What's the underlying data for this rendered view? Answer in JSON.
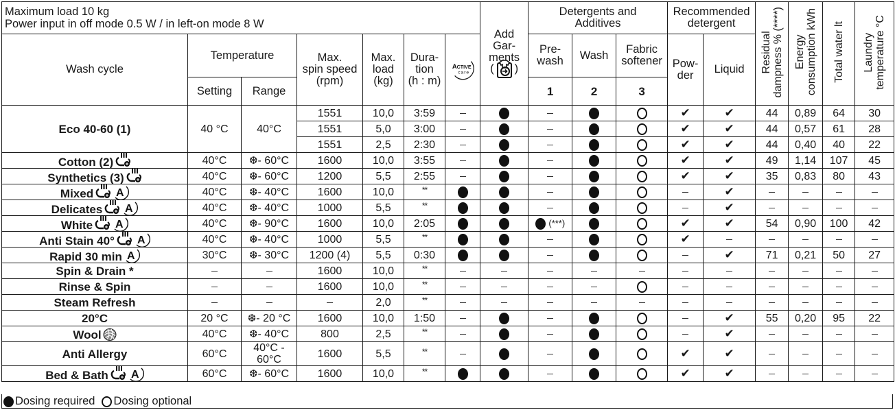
{
  "header": {
    "line1": "Maximum load 10 kg",
    "line2": "Power input in off mode 0.5 W / in left-on mode 8 W"
  },
  "columns": {
    "wash_cycle": "Wash cycle",
    "temperature": "Temperature",
    "setting": "Setting",
    "range": "Range",
    "spin_1": "Max.",
    "spin_2": "spin speed",
    "spin_3": "(rpm)",
    "load_1": "Max.",
    "load_2": "load",
    "load_3": "(kg)",
    "dur_1": "Dura-",
    "dur_2": "tion",
    "dur_3": "(h : m)",
    "active_care_icon": "active-care-icon",
    "add_1": "Add",
    "add_2": "Gar-",
    "add_3": "ments",
    "add_icon": "add-garment-icon",
    "detergents_1": "Detergents and",
    "detergents_2": "Additives",
    "prewash_1": "Pre-",
    "prewash_2": "wash",
    "prewash_num": "1",
    "wash": "Wash",
    "wash_num": "2",
    "softener_1": "Fabric",
    "softener_2": "softener",
    "softener_num": "3",
    "recommended_1": "Recommended",
    "recommended_2": "detergent",
    "powder_1": "Pow-",
    "powder_2": "der",
    "liquid": "Liquid",
    "residual_1": "Residual",
    "residual_2": "dampness % (****)",
    "energy_1": "Energy",
    "energy_2": "consumption kWh",
    "water": "Total water lt",
    "laundry_1": "Laundry",
    "laundry_2": "temperature °C"
  },
  "symbols": {
    "dash": "–",
    "check": "✔",
    "stars2": "**",
    "prewash_note": "(***)",
    "snow": "❆"
  },
  "rows": [
    {
      "cycle": "Eco 40-60 (1)",
      "icons": [],
      "setting": "40 °C",
      "range": "40°C",
      "sub": [
        {
          "spin": "1551",
          "load": "10,0",
          "dur": "3:59",
          "active": "dash",
          "add": "dot",
          "pre": "dash",
          "wash": "dot",
          "soft": "ring",
          "powder": "check",
          "liquid": "check",
          "res": "44",
          "energy": "0,89",
          "water": "64",
          "ltemp": "30"
        },
        {
          "spin": "1551",
          "load": "5,0",
          "dur": "3:00",
          "active": "dash",
          "add": "dot",
          "pre": "dash",
          "wash": "dot",
          "soft": "ring",
          "powder": "check",
          "liquid": "check",
          "res": "44",
          "energy": "0,57",
          "water": "61",
          "ltemp": "28"
        },
        {
          "spin": "1551",
          "load": "2,5",
          "dur": "2:30",
          "active": "dash",
          "add": "dot",
          "pre": "dash",
          "wash": "dot",
          "soft": "ring",
          "powder": "check",
          "liquid": "check",
          "res": "44",
          "energy": "0,40",
          "water": "40",
          "ltemp": "22"
        }
      ]
    },
    {
      "cycle": "Cotton (2)",
      "icons": [
        "steam"
      ],
      "setting": "40°C",
      "range": "- 60°C",
      "snow": true,
      "spin": "1600",
      "load": "10,0",
      "dur": "3:55",
      "active": "dash",
      "add": "dot",
      "pre": "dash",
      "wash": "dot",
      "soft": "ring",
      "powder": "check",
      "liquid": "check",
      "res": "49",
      "energy": "1,14",
      "water": "107",
      "ltemp": "45"
    },
    {
      "cycle": "Synthetics (3)",
      "icons": [
        "steam"
      ],
      "setting": "40°C",
      "range": "- 60°C",
      "snow": true,
      "spin": "1200",
      "load": "5,5",
      "dur": "2:55",
      "active": "dash",
      "add": "dot",
      "pre": "dash",
      "wash": "dot",
      "soft": "ring",
      "powder": "check",
      "liquid": "check",
      "res": "35",
      "energy": "0,83",
      "water": "80",
      "ltemp": "43"
    },
    {
      "cycle": "Mixed",
      "icons": [
        "steam",
        "auto"
      ],
      "setting": "40°C",
      "range": "- 40°C",
      "snow": true,
      "spin": "1600",
      "load": "10,0",
      "dur": "**",
      "active": "dot",
      "add": "dot",
      "pre": "dash",
      "wash": "dot",
      "soft": "ring",
      "powder": "dash",
      "liquid": "check",
      "res": "–",
      "energy": "–",
      "water": "–",
      "ltemp": "–"
    },
    {
      "cycle": "Delicates",
      "icons": [
        "steam",
        "auto"
      ],
      "setting": "40°C",
      "range": "- 40°C",
      "snow": true,
      "spin": "1000",
      "load": "5,5",
      "dur": "**",
      "active": "dot",
      "add": "dot",
      "pre": "dash",
      "wash": "dot",
      "soft": "ring",
      "powder": "dash",
      "liquid": "check",
      "res": "–",
      "energy": "–",
      "water": "–",
      "ltemp": "–"
    },
    {
      "cycle": "White",
      "icons": [
        "steam",
        "auto"
      ],
      "setting": "40°C",
      "range": "- 90°C",
      "snow": true,
      "spin": "1600",
      "load": "10,0",
      "dur": "2:05",
      "active": "dot",
      "add": "dot",
      "pre": "dot-note",
      "wash": "dot",
      "soft": "ring",
      "powder": "check",
      "liquid": "check",
      "res": "54",
      "energy": "0,90",
      "water": "100",
      "ltemp": "42"
    },
    {
      "cycle": "Anti Stain 40°",
      "icons": [
        "steam",
        "auto"
      ],
      "setting": "40°C",
      "range": "- 40°C",
      "snow": true,
      "spin": "1000",
      "load": "5,5",
      "dur": "**",
      "active": "dot",
      "add": "dot",
      "pre": "dash",
      "wash": "dot",
      "soft": "ring",
      "powder": "check",
      "liquid": "dash",
      "res": "–",
      "energy": "–",
      "water": "–",
      "ltemp": "–"
    },
    {
      "cycle": "Rapid 30 min",
      "icons": [
        "auto"
      ],
      "setting": "30°C",
      "range": "- 30°C",
      "snow": true,
      "spin": "1200 (4)",
      "load": "5,5",
      "dur": "0:30",
      "active": "dot",
      "add": "dot",
      "pre": "dash",
      "wash": "dot",
      "soft": "ring",
      "powder": "dash",
      "liquid": "check",
      "res": "71",
      "energy": "0,21",
      "water": "50",
      "ltemp": "27"
    },
    {
      "cycle": "Spin & Drain *",
      "icons": [],
      "setting": "–",
      "range": "–",
      "snow": false,
      "spin": "1600",
      "load": "10,0",
      "dur": "**",
      "active": "dash",
      "add": "dash",
      "pre": "dash",
      "wash": "dash",
      "soft": "dash",
      "powder": "dash",
      "liquid": "dash",
      "res": "–",
      "energy": "–",
      "water": "–",
      "ltemp": "–"
    },
    {
      "cycle": "Rinse & Spin",
      "icons": [],
      "setting": "–",
      "range": "–",
      "snow": false,
      "spin": "1600",
      "load": "10,0",
      "dur": "**",
      "active": "dash",
      "add": "dash",
      "pre": "dash",
      "wash": "dash",
      "soft": "ring",
      "powder": "dash",
      "liquid": "dash",
      "res": "–",
      "energy": "–",
      "water": "–",
      "ltemp": "–"
    },
    {
      "cycle": "Steam Refresh",
      "icons": [],
      "setting": "–",
      "range": "–",
      "snow": false,
      "spin": "–",
      "load": "2,0",
      "dur": "**",
      "active": "dash",
      "add": "dash",
      "pre": "dash",
      "wash": "dash",
      "soft": "dash",
      "powder": "dash",
      "liquid": "dash",
      "res": "–",
      "energy": "–",
      "water": "–",
      "ltemp": "–"
    },
    {
      "cycle": "20°C",
      "icons": [],
      "setting": "20 °C",
      "range": "- 20 °C",
      "snow": true,
      "spin": "1600",
      "load": "10,0",
      "dur": "1:50",
      "active": "dash",
      "add": "dot",
      "pre": "dash",
      "wash": "dot",
      "soft": "ring",
      "powder": "dash",
      "liquid": "check",
      "res": "55",
      "energy": "0,20",
      "water": "95",
      "ltemp": "22"
    },
    {
      "cycle": "Wool",
      "icons": [
        "wool"
      ],
      "setting": "40°C",
      "range": "- 40°C",
      "snow": true,
      "spin": "800",
      "load": "2,5",
      "dur": "**",
      "active": "dash",
      "add": "dot",
      "pre": "dash",
      "wash": "dot",
      "soft": "ring",
      "powder": "dash",
      "liquid": "check",
      "res": "–",
      "energy": "–",
      "water": "–",
      "ltemp": "–"
    },
    {
      "cycle": "Anti Allergy",
      "icons": [],
      "setting": "60°C",
      "range": "40°C -",
      "range2": "60°C",
      "snow": false,
      "spin": "1600",
      "load": "5,5",
      "dur": "**",
      "active": "dash",
      "add": "dot",
      "pre": "dash",
      "wash": "dot",
      "soft": "ring",
      "powder": "check",
      "liquid": "check",
      "res": "–",
      "energy": "–",
      "water": "–",
      "ltemp": "–"
    },
    {
      "cycle": "Bed & Bath",
      "icons": [
        "steam",
        "auto"
      ],
      "setting": "60°C",
      "range": "- 60°C",
      "snow": true,
      "spin": "1600",
      "load": "10,0",
      "dur": "**",
      "active": "dot",
      "add": "dot",
      "pre": "dash",
      "wash": "dot",
      "soft": "ring",
      "powder": "check",
      "liquid": "check",
      "res": "–",
      "energy": "–",
      "water": "–",
      "ltemp": "–"
    }
  ],
  "footer": {
    "dosing_required": "Dosing required",
    "dosing_optional": "Dosing optional"
  },
  "colors": {
    "text": "#1a1a1a",
    "border": "#1a1a1a",
    "background": "#ffffff"
  }
}
